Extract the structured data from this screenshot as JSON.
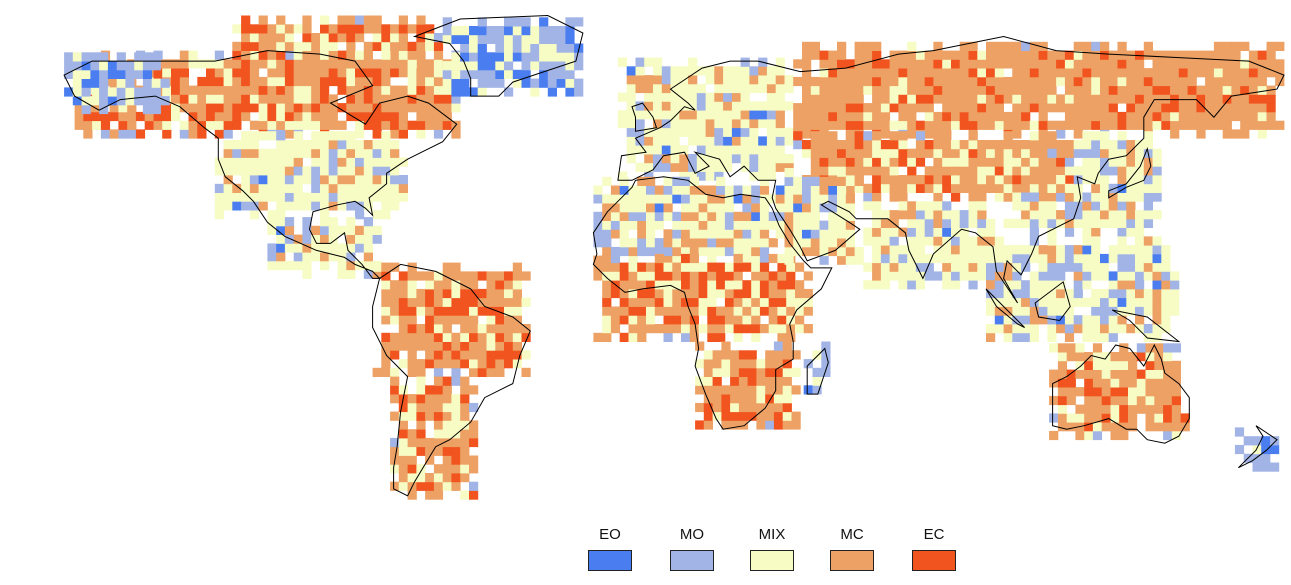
{
  "map": {
    "projection": "equirectangular",
    "cell_size_deg": 2.5,
    "regions": [
      {
        "name": "north-america-boreal",
        "lon": [
          -165,
          -55
        ],
        "lat": [
          48,
          72
        ],
        "class": "MC",
        "mix": 0.55
      },
      {
        "name": "north-america-temperate",
        "lon": [
          -125,
          -70
        ],
        "lat": [
          25,
          48
        ],
        "class": "MIX",
        "mix": 0.75
      },
      {
        "name": "alaska",
        "lon": [
          -168,
          -140
        ],
        "lat": [
          55,
          71
        ],
        "class": "MO",
        "mix": 0.5
      },
      {
        "name": "canadian-arctic",
        "lon": [
          -120,
          -60
        ],
        "lat": [
          68,
          82
        ],
        "class": "MC",
        "mix": 0.5
      },
      {
        "name": "greenland-coast",
        "lon": [
          -60,
          -20
        ],
        "lat": [
          60,
          82
        ],
        "class": "MO",
        "mix": 0.4
      },
      {
        "name": "central-america",
        "lon": [
          -110,
          -78
        ],
        "lat": [
          8,
          25
        ],
        "class": "MIX",
        "mix": 0.6
      },
      {
        "name": "amazon-andes",
        "lon": [
          -80,
          -35
        ],
        "lat": [
          -20,
          12
        ],
        "class": "MC",
        "mix": 0.55
      },
      {
        "name": "south-cone",
        "lon": [
          -75,
          -52
        ],
        "lat": [
          -55,
          -20
        ],
        "class": "MC",
        "mix": 0.5
      },
      {
        "name": "europe",
        "lon": [
          -10,
          40
        ],
        "lat": [
          36,
          70
        ],
        "class": "MIX",
        "mix": 0.65
      },
      {
        "name": "russia",
        "lon": [
          40,
          180
        ],
        "lat": [
          48,
          75
        ],
        "class": "MC",
        "mix": 0.75
      },
      {
        "name": "central-asia",
        "lon": [
          40,
          120
        ],
        "lat": [
          30,
          50
        ],
        "class": "MC",
        "mix": 0.6
      },
      {
        "name": "east-asia",
        "lon": [
          100,
          145
        ],
        "lat": [
          20,
          48
        ],
        "class": "MIX",
        "mix": 0.55
      },
      {
        "name": "south-asia",
        "lon": [
          60,
          100
        ],
        "lat": [
          5,
          30
        ],
        "class": "MIX",
        "mix": 0.65
      },
      {
        "name": "southeast-asia",
        "lon": [
          95,
          150
        ],
        "lat": [
          -10,
          20
        ],
        "class": "MIX",
        "mix": 0.55
      },
      {
        "name": "north-africa",
        "lon": [
          -17,
          35
        ],
        "lat": [
          12,
          35
        ],
        "class": "MIX",
        "mix": 0.45
      },
      {
        "name": "sahel-central-africa",
        "lon": [
          -17,
          45
        ],
        "lat": [
          -10,
          15
        ],
        "class": "MC",
        "mix": 0.5
      },
      {
        "name": "southern-africa",
        "lon": [
          12,
          40
        ],
        "lat": [
          -35,
          -10
        ],
        "class": "MC",
        "mix": 0.45
      },
      {
        "name": "middle-east",
        "lon": [
          35,
          60
        ],
        "lat": [
          12,
          38
        ],
        "class": "MIX",
        "mix": 0.6
      },
      {
        "name": "australia",
        "lon": [
          113,
          153
        ],
        "lat": [
          -38,
          -12
        ],
        "class": "MC",
        "mix": 0.6
      },
      {
        "name": "new-zealand",
        "lon": [
          166,
          178
        ],
        "lat": [
          -47,
          -35
        ],
        "class": "MO",
        "mix": 0.5
      },
      {
        "name": "madagascar",
        "lon": [
          43,
          50
        ],
        "lat": [
          -25,
          -12
        ],
        "class": "MO",
        "mix": 0.5
      }
    ]
  },
  "legend": {
    "items": [
      {
        "code": "EO",
        "color": "#4a7ef0"
      },
      {
        "code": "MO",
        "color": "#a2b4e6"
      },
      {
        "code": "MIX",
        "color": "#f6fcc4"
      },
      {
        "code": "MC",
        "color": "#eda164"
      },
      {
        "code": "EC",
        "color": "#f1541f"
      }
    ]
  }
}
